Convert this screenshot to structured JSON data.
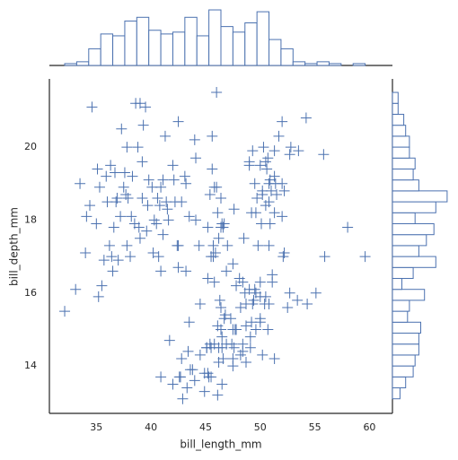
{
  "chart_data": [
    {
      "type": "scatter",
      "xlabel": "bill_length_mm",
      "ylabel": "bill_depth_mm",
      "color": "#4c72b0",
      "marker": "+",
      "grid": false,
      "xlim": [
        30.7,
        62.1
      ],
      "ylim": [
        12.7,
        21.87
      ],
      "xticks": [
        35,
        40,
        45,
        50,
        55,
        60
      ],
      "yticks": [
        14,
        16,
        18,
        20
      ],
      "x": [
        34.6,
        39.0,
        39.5,
        38.6,
        37.8,
        38.8,
        39.2,
        40.9,
        36.7,
        39.3,
        41.1,
        42.5,
        41.3,
        38.2,
        35.9,
        36.6,
        37.3,
        35.7,
        35.0,
        34.1,
        37.9,
        40.3,
        36.2,
        37.7,
        39.8,
        40.6,
        37.2,
        36.4,
        35.3,
        33.1,
        32.1,
        35.1,
        34.0,
        36.0,
        37.6,
        39.6,
        40.1,
        42.0,
        41.6,
        40.7,
        38.1,
        36.8,
        39.7,
        43.2,
        43.1,
        44.1,
        42.2,
        45.6,
        41.4,
        38.5,
        35.5,
        36.5,
        38.9,
        37.0,
        39.2,
        40.2,
        42.8,
        45.8,
        44.1,
        41.5,
        36.3,
        34.4,
        37.8,
        33.5,
        35.2,
        37.5,
        40.5,
        42.1,
        39.0,
        38.3,
        41.1,
        36.9,
        44.0,
        40.8,
        46.1,
        50.0,
        48.7,
        50.0,
        47.6,
        46.5,
        45.4,
        46.7,
        43.3,
        46.8,
        40.9,
        49.0,
        45.5,
        48.4,
        45.8,
        49.3,
        42.0,
        49.2,
        46.2,
        48.7,
        50.2,
        45.1,
        46.5,
        46.3,
        42.9,
        46.1,
        44.5,
        47.8,
        48.2,
        50.0,
        47.3,
        42.8,
        45.1,
        59.6,
        49.1,
        48.4,
        42.6,
        44.4,
        44.0,
        48.7,
        42.7,
        49.6,
        45.3,
        49.6,
        50.5,
        43.5,
        50.7,
        47.7,
        46.4,
        48.2,
        46.5,
        46.4,
        48.6,
        47.5,
        51.1,
        45.2,
        45.2,
        49.1,
        52.5,
        47.4,
        50.0,
        44.9,
        50.8,
        43.4,
        51.3,
        47.5,
        52.1,
        47.5,
        52.2,
        45.5,
        49.5,
        44.5,
        50.8,
        49.4,
        46.9,
        48.4,
        51.1,
        55.9,
        53.4,
        55.1,
        54.3,
        47.8,
        45.8,
        50.4,
        46.6,
        52.7,
        41.7,
        43.8,
        44.9,
        46.2,
        43.6,
        46.5,
        50.0,
        51.3,
        45.4,
        52.7,
        45.2,
        46.1,
        51.3,
        46.0,
        51.3,
        46.6,
        51.7,
        47.0,
        52.0,
        45.9,
        50.5,
        50.3,
        58.0,
        46.4,
        49.2,
        42.4,
        48.5,
        43.2,
        50.6,
        46.7,
        52.0,
        50.5,
        49.5,
        46.4,
        52.8,
        40.9,
        54.2,
        42.5,
        51.0,
        49.7,
        47.5,
        47.6,
        52.0,
        46.9,
        53.5,
        49.0,
        46.2,
        50.9,
        45.5,
        50.9,
        50.8,
        50.1,
        49.0,
        51.5,
        49.8,
        48.1,
        51.4,
        45.7,
        50.7,
        42.5,
        52.2,
        45.6,
        49.3,
        50.2,
        45.7,
        55.8,
        43.5,
        49.6,
        50.8,
        50.2,
        46.0
      ],
      "y": [
        21.1,
        21.2,
        21.1,
        21.2,
        20.0,
        20.0,
        19.6,
        18.9,
        19.3,
        20.6,
        19.1,
        20.7,
        20.3,
        18.1,
        19.2,
        17.8,
        20.5,
        16.9,
        17.9,
        18.1,
        18.6,
        18.0,
        17.3,
        18.7,
        19.1,
        18.6,
        18.1,
        17.0,
        18.9,
        16.1,
        15.5,
        19.4,
        17.1,
        18.5,
        19.3,
        17.7,
        18.9,
        19.5,
        18.0,
        17.0,
        17.0,
        18.5,
        18.4,
        19.0,
        19.2,
        19.7,
        18.5,
        20.3,
        18.5,
        17.9,
        16.2,
        16.6,
        17.8,
        16.9,
        18.6,
        17.1,
        18.5,
        18.9,
        18.0,
        18.3,
        19.5,
        18.4,
        17.3,
        19.0,
        15.9,
        18.9,
        17.9,
        19.1,
        17.5,
        19.2,
        17.6,
        18.6,
        20.2,
        18.4,
        13.2,
        16.3,
        14.1,
        15.2,
        14.5,
        13.5,
        14.6,
        15.3,
        13.4,
        15.4,
        13.7,
        16.1,
        13.7,
        14.6,
        14.6,
        15.7,
        13.5,
        15.2,
        14.5,
        15.1,
        14.3,
        14.5,
        14.5,
        15.8,
        13.1,
        15.1,
        14.3,
        15.0,
        14.3,
        15.3,
        15.3,
        14.2,
        14.5,
        17.0,
        14.8,
        16.3,
        13.7,
        17.3,
        13.6,
        15.7,
        13.7,
        16.0,
        13.7,
        15.0,
        15.9,
        15.2,
        15.0,
        15.0,
        15.6,
        15.6,
        14.8,
        15.0,
        16.0,
        14.2,
        16.3,
        13.8,
        16.4,
        14.5,
        15.6,
        14.6,
        15.9,
        13.8,
        17.3,
        14.4,
        14.2,
        14.0,
        17.0,
        15.0,
        17.1,
        14.5,
        16.1,
        15.7,
        15.7,
        15.8,
        14.6,
        14.4,
        16.5,
        17.0,
        15.8,
        16.0,
        15.7,
        16.2,
        16.3,
        15.7,
        14.2,
        16.0,
        14.7,
        13.9,
        13.3,
        14.1,
        13.9,
        17.9,
        19.5,
        19.2,
        18.7,
        19.8,
        17.8,
        18.2,
        18.2,
        18.9,
        19.9,
        17.8,
        20.3,
        17.3,
        18.1,
        17.1,
        19.6,
        20.0,
        17.8,
        18.6,
        18.2,
        17.3,
        17.5,
        16.6,
        19.4,
        17.9,
        19.0,
        18.4,
        19.0,
        17.8,
        20.0,
        16.6,
        20.8,
        16.7,
        18.8,
        18.6,
        16.8,
        18.3,
        20.7,
        16.6,
        19.9,
        19.5,
        17.5,
        19.1,
        17.0,
        17.9,
        18.5,
        17.9,
        19.6,
        18.7,
        17.3,
        16.4,
        19.0,
        17.3,
        19.7,
        17.3,
        18.8,
        19.4,
        19.9,
        18.8,
        17.0,
        19.8,
        18.1,
        18.2,
        19.0,
        18.7,
        21.5
      ]
    },
    {
      "type": "histogram",
      "orientation": "vertical",
      "color": "#4c72b0",
      "fill": "#ffffff",
      "bins": [
        32.1,
        33.2,
        34.3,
        35.4,
        36.5,
        37.6,
        38.7,
        39.8,
        40.9,
        42.0,
        43.1,
        44.2,
        45.3,
        46.4,
        47.5,
        48.6,
        49.7,
        50.8,
        51.9,
        53.0,
        54.1,
        55.2,
        56.3,
        57.4,
        58.5,
        59.6
      ],
      "values": [
        1,
        2,
        9,
        17,
        16,
        24,
        26,
        19,
        17,
        18,
        26,
        16,
        30,
        21,
        18,
        23,
        29,
        14,
        9,
        2,
        1,
        2,
        1,
        0,
        1
      ],
      "xlim": [
        30.7,
        62.1
      ],
      "ylim": [
        0,
        30.5
      ]
    },
    {
      "type": "histogram",
      "orientation": "horizontal",
      "color": "#4c72b0",
      "fill": "#ffffff",
      "bins": [
        13.1,
        13.4,
        13.7,
        14.0,
        14.3,
        14.6,
        14.9,
        15.2,
        15.5,
        15.8,
        16.1,
        16.4,
        16.7,
        17.0,
        17.3,
        17.6,
        17.9,
        18.2,
        18.5,
        18.8,
        19.1,
        19.4,
        19.7,
        20.0,
        20.3,
        20.6,
        20.9,
        21.2,
        21.5
      ],
      "values": [
        4,
        7,
        11,
        12,
        14,
        14,
        15,
        8,
        9,
        17,
        5,
        11,
        23,
        14,
        18,
        22,
        12,
        23,
        29,
        14,
        11,
        12,
        9,
        9,
        7,
        6,
        3,
        3
      ],
      "ylim": [
        12.7,
        21.87
      ],
      "xlim": [
        0,
        30
      ]
    }
  ]
}
